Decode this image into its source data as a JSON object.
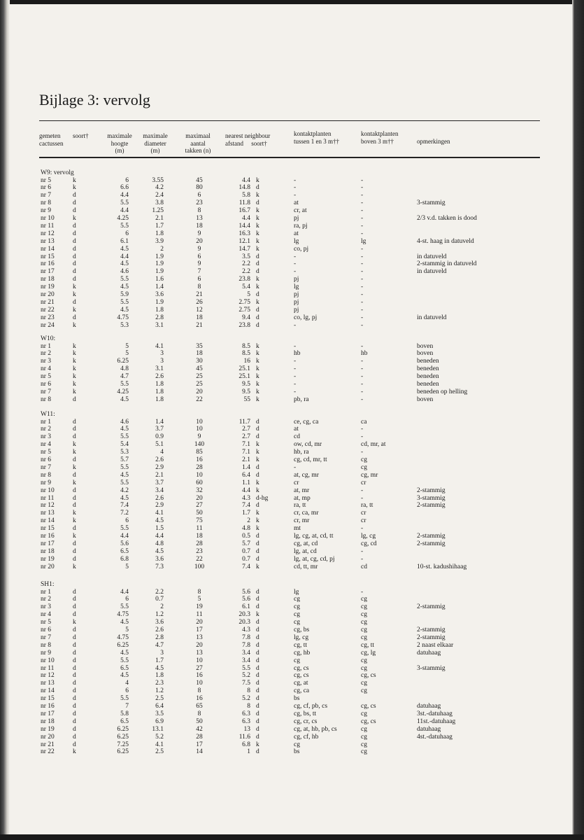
{
  "title": "Bijlage 3: vervolg",
  "headers": {
    "gemeten": "gemeten",
    "cactussen": "cactussen",
    "soort": "soort†",
    "hoogte_1": "maximale",
    "hoogte_2": "hoogte",
    "hoogte_3": "(m)",
    "diameter_1": "maximale",
    "diameter_2": "diameter",
    "diameter_3": "(m)",
    "takken_1": "maximaal",
    "takken_2": "aantal",
    "takken_3": "takken (n)",
    "nn": "nearest neighbour",
    "nn_afstand": "afstand",
    "nn_soort": "soort†",
    "k1_1": "kontaktplanten",
    "k1_2": "tussen 1 en 3 m††",
    "k2_1": "kontaktplanten",
    "k2_2": "boven 3 m††",
    "opm": "opmerkingen"
  },
  "sections": [
    {
      "label": "W9: vervolg",
      "rows": [
        [
          "nr 5",
          "k",
          "6",
          "3.55",
          "45",
          "4.4",
          "k",
          "-",
          "-",
          ""
        ],
        [
          "nr 6",
          "k",
          "6.6",
          "4.2",
          "80",
          "14.8",
          "d",
          "-",
          "-",
          ""
        ],
        [
          "nr 7",
          "d",
          "4.4",
          "2.4",
          "6",
          "5.8",
          "k",
          "-",
          "-",
          ""
        ],
        [
          "nr 8",
          "d",
          "5.5",
          "3.8",
          "23",
          "11.8",
          "d",
          "at",
          "-",
          "3-stammig"
        ],
        [
          "nr 9",
          "d",
          "4.4",
          "1.25",
          "8",
          "16.7",
          "k",
          "cr, at",
          "-",
          ""
        ],
        [
          "nr 10",
          "k",
          "4.25",
          "2.1",
          "13",
          "4.4",
          "k",
          "pj",
          "-",
          "2/3 v.d. takken is dood"
        ],
        [
          "nr 11",
          "d",
          "5.5",
          "1.7",
          "18",
          "14.4",
          "k",
          "ra, pj",
          "-",
          ""
        ],
        [
          "nr 12",
          "d",
          "6",
          "1.8",
          "9",
          "16.3",
          "k",
          "at",
          "-",
          ""
        ],
        [
          "nr 13",
          "d",
          "6.1",
          "3.9",
          "20",
          "12.1",
          "k",
          "lg",
          "lg",
          "4-st. haag in datuveld"
        ],
        [
          "nr 14",
          "d",
          "4.5",
          "2",
          "9",
          "14.7",
          "k",
          "co, pj",
          "-",
          ""
        ],
        [
          "nr 15",
          "d",
          "4.4",
          "1.9",
          "6",
          "3.5",
          "d",
          "-",
          "-",
          "in datuveld"
        ],
        [
          "nr 16",
          "d",
          "4.5",
          "1.9",
          "9",
          "2.2",
          "d",
          "-",
          "-",
          "2-stammig in datuveld"
        ],
        [
          "nr 17",
          "d",
          "4.6",
          "1.9",
          "7",
          "2.2",
          "d",
          "-",
          "-",
          "in datuveld"
        ],
        [
          "nr 18",
          "d",
          "5.5",
          "1.6",
          "6",
          "23.8",
          "k",
          "pj",
          "-",
          ""
        ],
        [
          "nr 19",
          "k",
          "4.5",
          "1.4",
          "8",
          "5.4",
          "k",
          "lg",
          "-",
          ""
        ],
        [
          "nr 20",
          "k",
          "5.9",
          "3.6",
          "21",
          "5",
          "d",
          "pj",
          "-",
          ""
        ],
        [
          "nr 21",
          "d",
          "5.5",
          "1.9",
          "26",
          "2.75",
          "k",
          "pj",
          "-",
          ""
        ],
        [
          "nr 22",
          "k",
          "4.5",
          "1.8",
          "12",
          "2.75",
          "d",
          "pj",
          "-",
          ""
        ],
        [
          "nr 23",
          "d",
          "4.75",
          "2.8",
          "18",
          "9.4",
          "d",
          "co, lg, pj",
          "-",
          "in datuveld"
        ],
        [
          "nr 24",
          "k",
          "5.3",
          "3.1",
          "21",
          "23.8",
          "d",
          "-",
          "-",
          ""
        ]
      ]
    },
    {
      "label": "W10:",
      "rows": [
        [
          "nr 1",
          "k",
          "5",
          "4.1",
          "35",
          "8.5",
          "k",
          "-",
          "-",
          "boven"
        ],
        [
          "nr 2",
          "k",
          "5",
          "3",
          "18",
          "8.5",
          "k",
          "hb",
          "hb",
          "boven"
        ],
        [
          "nr 3",
          "k",
          "6.25",
          "3",
          "30",
          "16",
          "k",
          "-",
          "-",
          "beneden"
        ],
        [
          "nr 4",
          "k",
          "4.8",
          "3.1",
          "45",
          "25.1",
          "k",
          "-",
          "-",
          "beneden"
        ],
        [
          "nr 5",
          "k",
          "4.7",
          "2.6",
          "25",
          "25.1",
          "k",
          "-",
          "-",
          "beneden"
        ],
        [
          "nr 6",
          "k",
          "5.5",
          "1.8",
          "25",
          "9.5",
          "k",
          "-",
          "-",
          "beneden"
        ],
        [
          "nr 7",
          "k",
          "4.25",
          "1.8",
          "20",
          "9.5",
          "k",
          "-",
          "-",
          "beneden op helling"
        ],
        [
          "nr 8",
          "d",
          "4.5",
          "1.8",
          "22",
          "55",
          "k",
          "pb, ra",
          "-",
          "boven"
        ]
      ]
    },
    {
      "label": "W11:",
      "rows": [
        [
          "nr 1",
          "d",
          "4.6",
          "1.4",
          "10",
          "11.7",
          "d",
          "ce, cg, ca",
          "ca",
          ""
        ],
        [
          "nr 2",
          "d",
          "4.5",
          "3.7",
          "10",
          "2.7",
          "d",
          "at",
          "-",
          ""
        ],
        [
          "nr 3",
          "d",
          "5.5",
          "0.9",
          "9",
          "2.7",
          "d",
          "cd",
          "-",
          ""
        ],
        [
          "nr 4",
          "k",
          "5.4",
          "5.1",
          "140",
          "7.1",
          "k",
          "ow, cd, mr",
          "cd, mr, at",
          ""
        ],
        [
          "nr 5",
          "k",
          "5.3",
          "4",
          "85",
          "7.1",
          "k",
          "hb, ra",
          "-",
          ""
        ],
        [
          "nr 6",
          "d",
          "5.7",
          "2.6",
          "16",
          "2.1",
          "k",
          "cg, cd, mr, tt",
          "cg",
          ""
        ],
        [
          "nr 7",
          "k",
          "5.5",
          "2.9",
          "28",
          "1.4",
          "d",
          "-",
          "cg",
          ""
        ],
        [
          "nr 8",
          "d",
          "4.5",
          "2.1",
          "10",
          "6.4",
          "d",
          "at, cg, mr",
          "cg, mr",
          ""
        ],
        [
          "nr 9",
          "k",
          "5.5",
          "3.7",
          "60",
          "1.1",
          "k",
          "cr",
          "cr",
          ""
        ],
        [
          "nr 10",
          "d",
          "4.2",
          "3.4",
          "32",
          "4.4",
          "k",
          "at, mr",
          "-",
          "2-stammig"
        ],
        [
          "nr 11",
          "d",
          "4.5",
          "2.6",
          "20",
          "4.3",
          "d-hg",
          "at, mp",
          "-",
          "3-stammig"
        ],
        [
          "nr 12",
          "d",
          "7.4",
          "2.9",
          "27",
          "7.4",
          "d",
          "ra, tt",
          "ra, tt",
          "2-stammig"
        ],
        [
          "nr 13",
          "k",
          "7.2",
          "4.1",
          "50",
          "1.7",
          "k",
          "cr, ca, mr",
          "cr",
          ""
        ],
        [
          "nr 14",
          "k",
          "6",
          "4.5",
          "75",
          "2",
          "k",
          "cr, mr",
          "cr",
          ""
        ],
        [
          "nr 15",
          "d",
          "5.5",
          "1.5",
          "11",
          "4.8",
          "k",
          "mt",
          "-",
          ""
        ],
        [
          "nr 16",
          "k",
          "4.4",
          "4.4",
          "18",
          "0.5",
          "d",
          "lg, cg, at, cd, tt",
          "lg, cg",
          "2-stammig"
        ],
        [
          "nr 17",
          "d",
          "5.6",
          "4.8",
          "28",
          "5.7",
          "d",
          "cg, at, cd",
          "cg, cd",
          "2-stammig"
        ],
        [
          "nr 18",
          "d",
          "6.5",
          "4.5",
          "23",
          "0.7",
          "d",
          "lg, at, cd",
          "-",
          ""
        ],
        [
          "nr 19",
          "d",
          "6.8",
          "3.6",
          "22",
          "0.7",
          "d",
          "lg, at, cg, cd, pj",
          "-",
          ""
        ],
        [
          "nr 20",
          "k",
          "5",
          "7.3",
          "100",
          "7.4",
          "k",
          "cd, tt, mr",
          "cd",
          "10-st. kadushihaag"
        ]
      ]
    },
    {
      "label": "SH1:",
      "rows": [
        [
          "nr 1",
          "d",
          "4.4",
          "2.2",
          "8",
          "5.6",
          "d",
          "lg",
          "-",
          ""
        ],
        [
          "nr 2",
          "d",
          "6",
          "0.7",
          "5",
          "5.6",
          "d",
          "cg",
          "cg",
          ""
        ],
        [
          "nr 3",
          "d",
          "5.5",
          "2",
          "19",
          "6.1",
          "d",
          "cg",
          "cg",
          "2-stammig"
        ],
        [
          "nr 4",
          "d",
          "4.75",
          "1.2",
          "11",
          "20.3",
          "k",
          "cg",
          "cg",
          ""
        ],
        [
          "nr 5",
          "k",
          "4.5",
          "3.6",
          "20",
          "20.3",
          "d",
          "cg",
          "cg",
          ""
        ],
        [
          "nr 6",
          "d",
          "5",
          "2.6",
          "17",
          "4.3",
          "d",
          "cg, bs",
          "cg",
          "2-stammig"
        ],
        [
          "nr 7",
          "d",
          "4.75",
          "2.8",
          "13",
          "7.8",
          "d",
          "lg, cg",
          "cg",
          "2-stammig"
        ],
        [
          "nr 8",
          "d",
          "6.25",
          "4.7",
          "20",
          "7.8",
          "d",
          "cg, tt",
          "cg, tt",
          "2 naast elkaar"
        ],
        [
          "nr 9",
          "d",
          "4.5",
          "3",
          "13",
          "3.4",
          "d",
          "cg, hb",
          "cg, lg",
          "datuhaag"
        ],
        [
          "nr 10",
          "d",
          "5.5",
          "1.7",
          "10",
          "3.4",
          "d",
          "cg",
          "cg",
          ""
        ],
        [
          "nr 11",
          "d",
          "6.5",
          "4.5",
          "27",
          "5.5",
          "d",
          "cg, cs",
          "cg",
          "3-stammig"
        ],
        [
          "nr 12",
          "d",
          "4.5",
          "1.8",
          "16",
          "5.2",
          "d",
          "cg, cs",
          "cg, cs",
          ""
        ],
        [
          "nr 13",
          "d",
          "4",
          "2.3",
          "10",
          "7.5",
          "d",
          "cg, at",
          "cg",
          ""
        ],
        [
          "nr 14",
          "d",
          "6",
          "1.2",
          "8",
          "8",
          "d",
          "cg, ca",
          "cg",
          ""
        ],
        [
          "nr 15",
          "d",
          "5.5",
          "2.5",
          "16",
          "5.2",
          "d",
          "bs",
          "",
          ""
        ],
        [
          "nr 16",
          "d",
          "7",
          "6.4",
          "65",
          "8",
          "d",
          "cg, cf, pb, cs",
          "cg, cs",
          "datuhaag"
        ],
        [
          "nr 17",
          "d",
          "5.8",
          "3.5",
          "8",
          "6.3",
          "d",
          "cg, bs, tt",
          "cg",
          "3st.-datuhaag"
        ],
        [
          "nr 18",
          "d",
          "6.5",
          "6.9",
          "50",
          "6.3",
          "d",
          "cg, cr, cs",
          "cg, cs",
          "11st.-datuhaag"
        ],
        [
          "nr 19",
          "d",
          "6.25",
          "13.1",
          "42",
          "13",
          "d",
          "cg, at, hb, pb, cs",
          "cg",
          "datuhaag"
        ],
        [
          "nr 20",
          "d",
          "6.25",
          "5.2",
          "28",
          "11.6",
          "d",
          "cg, cf, hb",
          "cg",
          "4st.-datuhaag"
        ],
        [
          "nr 21",
          "d",
          "7.25",
          "4.1",
          "17",
          "6.8",
          "k",
          "cg",
          "cg",
          ""
        ],
        [
          "nr 22",
          "k",
          "6.25",
          "2.5",
          "14",
          "1",
          "d",
          "bs",
          "cg",
          ""
        ]
      ]
    }
  ]
}
